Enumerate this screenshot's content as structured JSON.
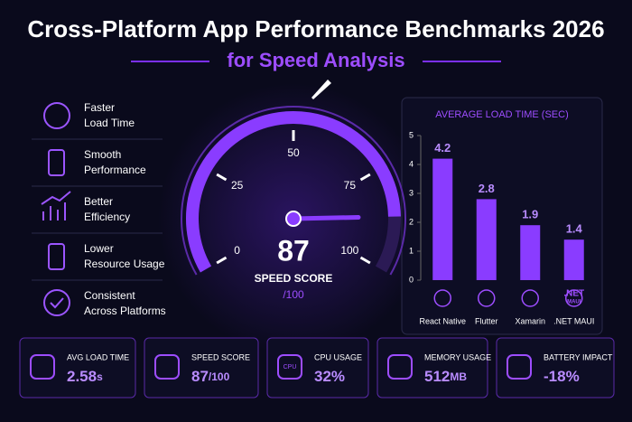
{
  "header": {
    "title": "Cross-Platform App Performance Benchmarks 2026",
    "subtitle": "for Speed Analysis"
  },
  "features": [
    [
      "Faster",
      "Load Time"
    ],
    [
      "Smooth",
      "Performance"
    ],
    [
      "Better",
      "Efficiency"
    ],
    [
      "Lower",
      "Resource Usage"
    ],
    [
      "Consistent",
      "Across Platforms"
    ]
  ],
  "chart_data": [
    {
      "type": "gauge",
      "value": 87,
      "label": "SPEED SCORE",
      "max_label": "/100",
      "lim": [
        0,
        100
      ],
      "ticks": [
        0,
        25,
        50,
        75,
        100
      ],
      "color": "#8a3cff"
    },
    {
      "type": "bar",
      "title": "AVERAGE LOAD TIME (SEC)",
      "categories": [
        "React Native",
        "Flutter",
        "Xamarin",
        ".NET MAUI"
      ],
      "values": [
        4.2,
        2.8,
        1.9,
        1.4
      ],
      "color": "#8a3cff",
      "ylim": [
        0,
        5
      ],
      "yticks": [
        0,
        1,
        2,
        3,
        4,
        5
      ],
      "icon_text": [
        ".NET",
        "MAUI"
      ]
    }
  ],
  "stats": [
    {
      "label": "AVG LOAD TIME",
      "value": "2.58",
      "unit": "s"
    },
    {
      "label": "SPEED SCORE",
      "value": "87",
      "unit": "/100"
    },
    {
      "label": "CPU USAGE",
      "value": "32%",
      "unit": "",
      "icon_text": "CPU"
    },
    {
      "label": "MEMORY USAGE",
      "value": "512",
      "unit": "MB"
    },
    {
      "label": "BATTERY IMPACT",
      "value": "-18%",
      "unit": ""
    }
  ]
}
